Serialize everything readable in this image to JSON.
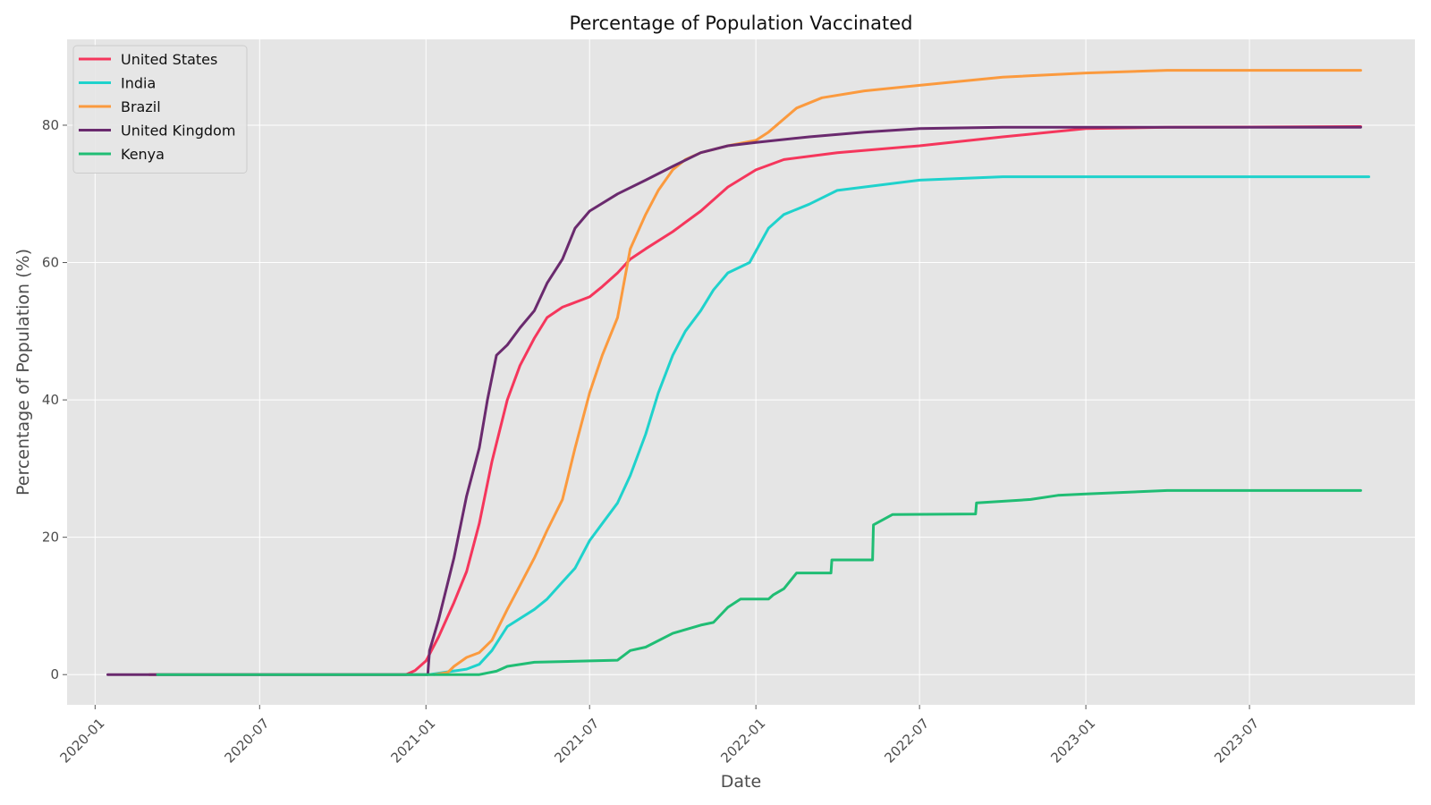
{
  "chart_data": {
    "type": "line",
    "title": "Percentage of Population Vaccinated",
    "xlabel": "Date",
    "ylabel": "Percentage of Population (%)",
    "x_tick_labels": [
      "2020-01",
      "2020-07",
      "2021-01",
      "2021-07",
      "2022-01",
      "2022-07",
      "2023-01",
      "2023-07"
    ],
    "x_ticks": [
      "2020-01-01",
      "2020-07-01",
      "2021-01-01",
      "2021-07-01",
      "2022-01-01",
      "2022-07-01",
      "2023-01-01",
      "2023-07-01"
    ],
    "y_ticks": [
      0,
      20,
      40,
      60,
      80
    ],
    "xlim": [
      "2019-12-01",
      "2023-12-31"
    ],
    "ylim": [
      -4.4,
      92.5
    ],
    "grid": true,
    "legend_position": "upper-left",
    "background": "#e5e5e5",
    "series": [
      {
        "name": "United States",
        "color": "#f5365c",
        "points": [
          [
            "2020-03-01",
            0
          ],
          [
            "2020-12-10",
            0
          ],
          [
            "2020-12-20",
            0.6
          ],
          [
            "2021-01-01",
            2.0
          ],
          [
            "2021-01-15",
            5.5
          ],
          [
            "2021-02-01",
            10.5
          ],
          [
            "2021-02-15",
            15.0
          ],
          [
            "2021-03-01",
            22.0
          ],
          [
            "2021-03-15",
            31.0
          ],
          [
            "2021-04-01",
            40.0
          ],
          [
            "2021-04-15",
            45.0
          ],
          [
            "2021-05-01",
            49.0
          ],
          [
            "2021-05-15",
            52.0
          ],
          [
            "2021-06-01",
            53.5
          ],
          [
            "2021-07-01",
            55.0
          ],
          [
            "2021-07-15",
            56.5
          ],
          [
            "2021-08-01",
            58.5
          ],
          [
            "2021-08-15",
            60.5
          ],
          [
            "2021-09-01",
            62.0
          ],
          [
            "2021-10-01",
            64.5
          ],
          [
            "2021-11-01",
            67.5
          ],
          [
            "2021-12-01",
            71.0
          ],
          [
            "2022-01-01",
            73.5
          ],
          [
            "2022-02-01",
            75.0
          ],
          [
            "2022-04-01",
            76.0
          ],
          [
            "2022-07-01",
            77.0
          ],
          [
            "2022-10-01",
            78.3
          ],
          [
            "2023-01-01",
            79.5
          ],
          [
            "2023-04-01",
            79.7
          ],
          [
            "2023-11-01",
            79.8
          ]
        ]
      },
      {
        "name": "India",
        "color": "#1fd2cc",
        "points": [
          [
            "2021-01-05",
            0
          ],
          [
            "2021-01-20",
            0.3
          ],
          [
            "2021-02-15",
            0.8
          ],
          [
            "2021-03-01",
            1.5
          ],
          [
            "2021-03-15",
            3.5
          ],
          [
            "2021-04-01",
            7.0
          ],
          [
            "2021-05-01",
            9.5
          ],
          [
            "2021-05-15",
            11.0
          ],
          [
            "2021-06-01",
            13.5
          ],
          [
            "2021-06-15",
            15.5
          ],
          [
            "2021-07-01",
            19.5
          ],
          [
            "2021-07-15",
            22.0
          ],
          [
            "2021-08-01",
            25.0
          ],
          [
            "2021-08-15",
            29.0
          ],
          [
            "2021-09-01",
            35.0
          ],
          [
            "2021-09-15",
            41.0
          ],
          [
            "2021-10-01",
            46.5
          ],
          [
            "2021-10-15",
            50.0
          ],
          [
            "2021-11-01",
            53.0
          ],
          [
            "2021-11-15",
            56.0
          ],
          [
            "2021-12-01",
            58.5
          ],
          [
            "2021-12-25",
            60.0
          ],
          [
            "2022-01-15",
            65.0
          ],
          [
            "2022-02-01",
            67.0
          ],
          [
            "2022-03-01",
            68.5
          ],
          [
            "2022-04-01",
            70.5
          ],
          [
            "2022-07-01",
            72.0
          ],
          [
            "2022-10-01",
            72.5
          ],
          [
            "2023-11-10",
            72.5
          ]
        ]
      },
      {
        "name": "Brazil",
        "color": "#fb9a3e",
        "points": [
          [
            "2021-01-10",
            0
          ],
          [
            "2021-01-25",
            0.3
          ],
          [
            "2021-02-01",
            1.2
          ],
          [
            "2021-02-15",
            2.5
          ],
          [
            "2021-03-01",
            3.2
          ],
          [
            "2021-03-15",
            5.0
          ],
          [
            "2021-04-01",
            9.5
          ],
          [
            "2021-04-15",
            13.0
          ],
          [
            "2021-05-01",
            17.0
          ],
          [
            "2021-05-15",
            21.0
          ],
          [
            "2021-06-01",
            25.5
          ],
          [
            "2021-06-15",
            33.0
          ],
          [
            "2021-07-01",
            41.0
          ],
          [
            "2021-07-15",
            46.5
          ],
          [
            "2021-08-01",
            52.0
          ],
          [
            "2021-08-15",
            62.0
          ],
          [
            "2021-09-01",
            67.0
          ],
          [
            "2021-09-15",
            70.5
          ],
          [
            "2021-10-01",
            73.5
          ],
          [
            "2021-10-15",
            75.0
          ],
          [
            "2021-11-01",
            76.0
          ],
          [
            "2021-12-01",
            77.0
          ],
          [
            "2022-01-01",
            77.8
          ],
          [
            "2022-01-15",
            79.0
          ],
          [
            "2022-02-15",
            82.5
          ],
          [
            "2022-03-15",
            84.0
          ],
          [
            "2022-05-01",
            85.0
          ],
          [
            "2022-07-01",
            85.8
          ],
          [
            "2022-10-01",
            87.0
          ],
          [
            "2023-01-01",
            87.6
          ],
          [
            "2023-04-01",
            88.0
          ],
          [
            "2023-11-01",
            88.0
          ]
        ]
      },
      {
        "name": "United Kingdom",
        "color": "#6a2a6e",
        "points": [
          [
            "2020-01-15",
            0
          ],
          [
            "2021-01-03",
            0
          ],
          [
            "2021-01-05",
            3.5
          ],
          [
            "2021-01-15",
            8.0
          ],
          [
            "2021-02-01",
            17.0
          ],
          [
            "2021-02-15",
            26.0
          ],
          [
            "2021-03-01",
            33.0
          ],
          [
            "2021-03-10",
            40.0
          ],
          [
            "2021-03-20",
            46.5
          ],
          [
            "2021-04-01",
            48.0
          ],
          [
            "2021-04-15",
            50.5
          ],
          [
            "2021-05-01",
            53.0
          ],
          [
            "2021-05-15",
            57.0
          ],
          [
            "2021-06-01",
            60.5
          ],
          [
            "2021-06-15",
            65.0
          ],
          [
            "2021-07-01",
            67.5
          ],
          [
            "2021-08-01",
            70.0
          ],
          [
            "2021-09-01",
            72.0
          ],
          [
            "2021-10-01",
            74.0
          ],
          [
            "2021-11-01",
            76.0
          ],
          [
            "2021-12-01",
            77.0
          ],
          [
            "2022-01-01",
            77.5
          ],
          [
            "2022-03-01",
            78.3
          ],
          [
            "2022-05-01",
            79.0
          ],
          [
            "2022-07-01",
            79.5
          ],
          [
            "2022-10-01",
            79.7
          ],
          [
            "2023-11-01",
            79.7
          ]
        ]
      },
      {
        "name": "Kenya",
        "color": "#20bd74",
        "points": [
          [
            "2020-03-10",
            0
          ],
          [
            "2021-03-01",
            0
          ],
          [
            "2021-03-20",
            0.5
          ],
          [
            "2021-04-01",
            1.2
          ],
          [
            "2021-05-01",
            1.8
          ],
          [
            "2021-07-01",
            2.0
          ],
          [
            "2021-08-01",
            2.1
          ],
          [
            "2021-08-15",
            3.5
          ],
          [
            "2021-09-01",
            4.0
          ],
          [
            "2021-10-01",
            6.0
          ],
          [
            "2021-11-01",
            7.2
          ],
          [
            "2021-11-15",
            7.6
          ],
          [
            "2021-12-01",
            9.8
          ],
          [
            "2021-12-15",
            11.0
          ],
          [
            "2022-01-15",
            11.0
          ],
          [
            "2022-01-20",
            11.6
          ],
          [
            "2022-02-01",
            12.5
          ],
          [
            "2022-02-15",
            14.8
          ],
          [
            "2022-03-25",
            14.8
          ],
          [
            "2022-03-26",
            16.7
          ],
          [
            "2022-05-10",
            16.7
          ],
          [
            "2022-05-11",
            21.8
          ],
          [
            "2022-06-01",
            23.3
          ],
          [
            "2022-09-01",
            23.4
          ],
          [
            "2022-09-02",
            25.0
          ],
          [
            "2022-11-01",
            25.5
          ],
          [
            "2022-12-01",
            26.1
          ],
          [
            "2023-01-01",
            26.3
          ],
          [
            "2023-04-01",
            26.8
          ],
          [
            "2023-11-01",
            26.8
          ]
        ]
      }
    ]
  }
}
